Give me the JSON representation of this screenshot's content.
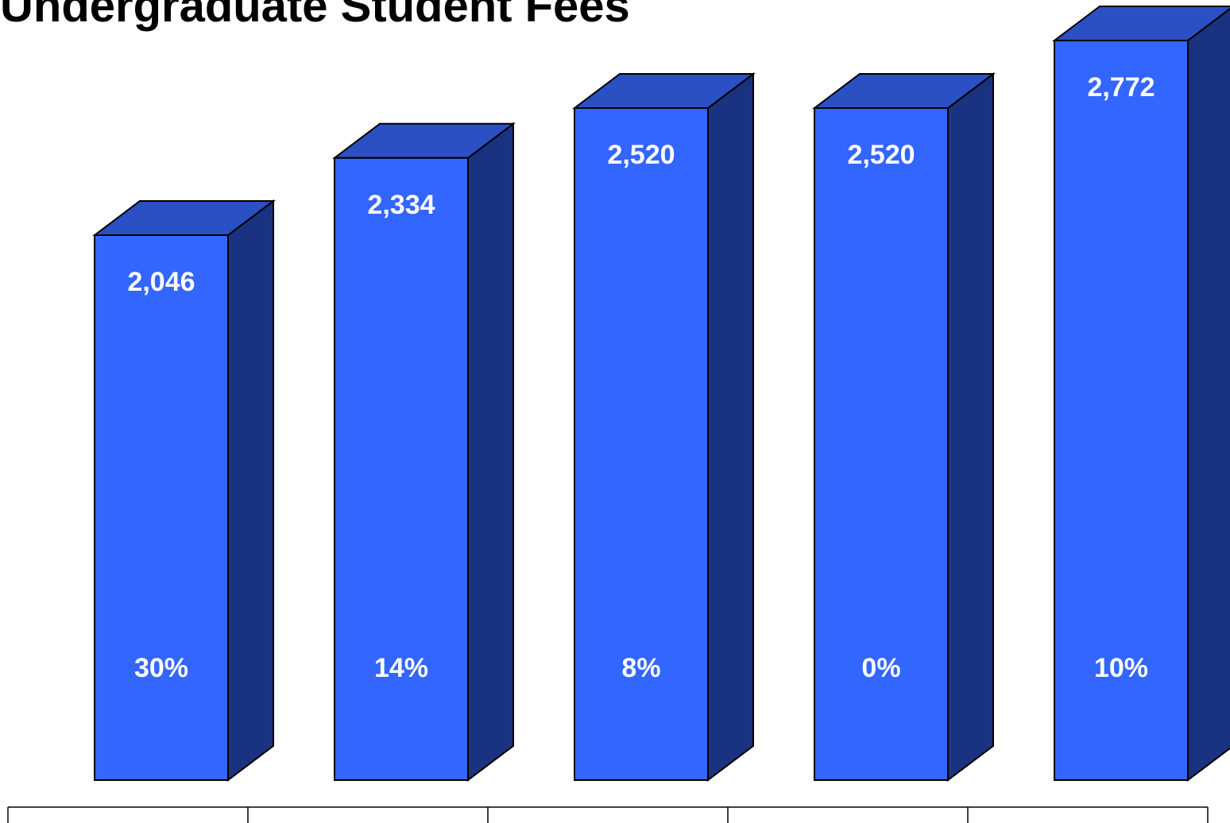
{
  "chart_data": {
    "type": "bar",
    "title": "Undergraduate Student Fees",
    "xlabel": "",
    "ylabel": "",
    "categories": [
      "",
      "",
      "",
      "",
      ""
    ],
    "values": [
      2046,
      2334,
      2520,
      2520,
      2772
    ],
    "value_labels": [
      "2,046",
      "2,334",
      "2,520",
      "2,520",
      "2,772"
    ],
    "change_labels": [
      "30%",
      "14%",
      "8%",
      "0%",
      "10%"
    ],
    "grid": false,
    "legend": "none",
    "colors": {
      "front": "#3366ff",
      "top": "#2a50c4",
      "side": "#1a3380",
      "outline": "#000000"
    }
  }
}
